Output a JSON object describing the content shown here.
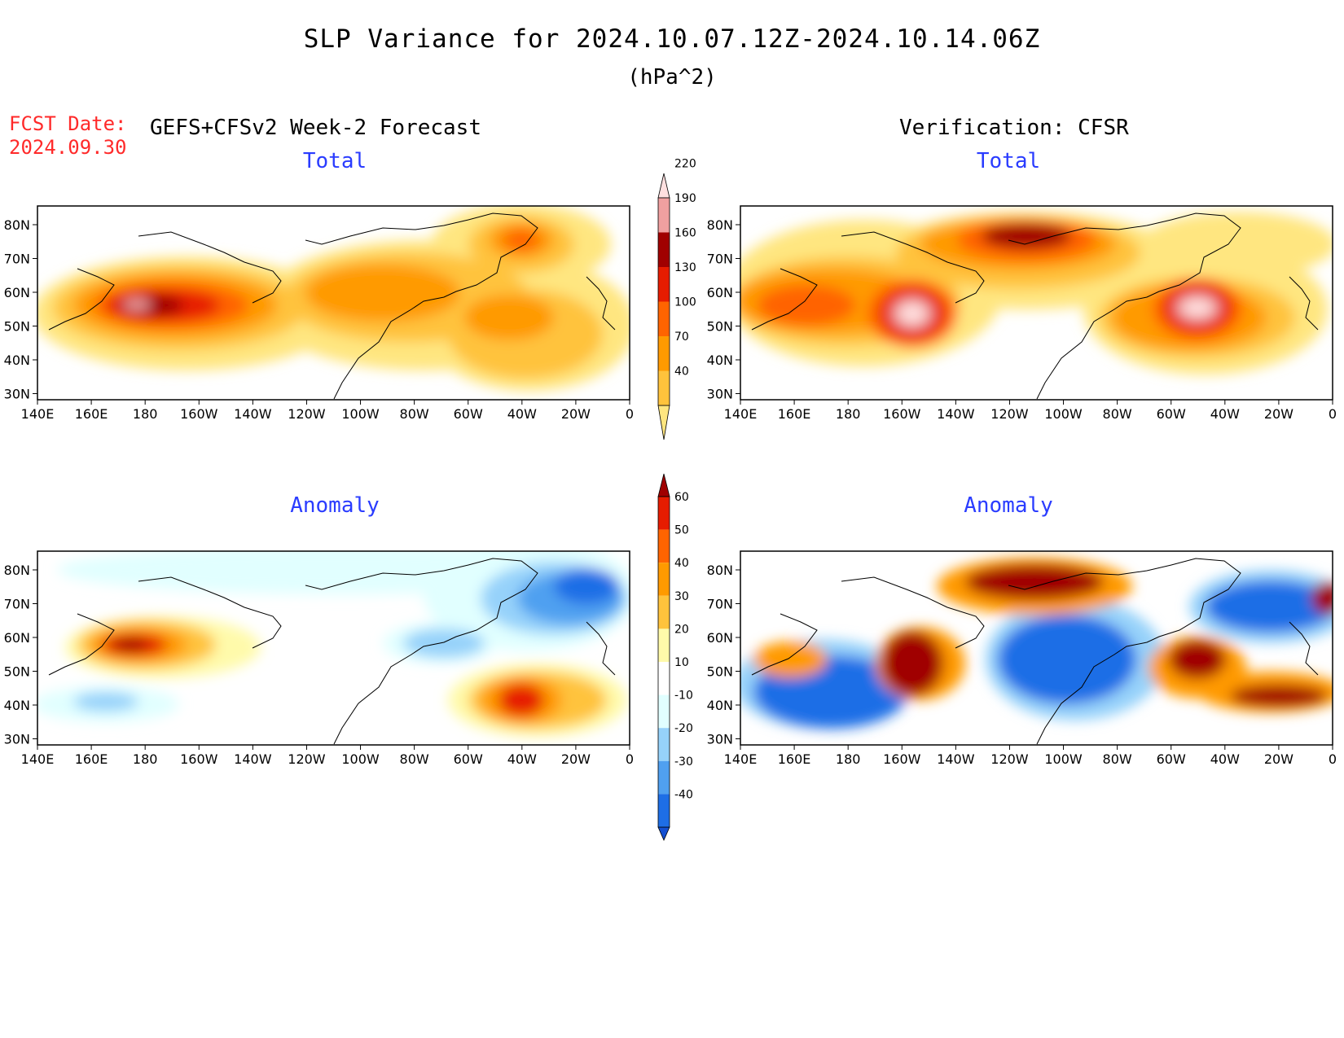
{
  "header": {
    "title": "SLP Variance for 2024.10.07.12Z-2024.10.14.06Z",
    "units": "(hPa^2)",
    "fcst_label": "FCST Date:",
    "fcst_date": "2024.09.30",
    "forecast_model": "GEFS+CFSv2 Week-2 Forecast",
    "verification": "Verification: CFSR"
  },
  "panels": [
    {
      "id": "fcst-total",
      "title": "Total"
    },
    {
      "id": "verif-total",
      "title": "Total"
    },
    {
      "id": "fcst-anomaly",
      "title": "Anomaly"
    },
    {
      "id": "verif-anomaly",
      "title": "Anomaly"
    }
  ],
  "axes": {
    "lon_ticks": [
      "140E",
      "160E",
      "180",
      "160W",
      "140W",
      "120W",
      "100W",
      "80W",
      "60W",
      "40W",
      "20W",
      "0"
    ],
    "lat_ticks": [
      "80N",
      "70N",
      "60N",
      "50N",
      "40N",
      "30N"
    ]
  },
  "colorbars": {
    "total": {
      "labels": [
        "40",
        "70",
        "100",
        "130",
        "160",
        "190",
        "220"
      ],
      "colors": [
        "#ffe680",
        "#ffc33c",
        "#ff9a00",
        "#ff6400",
        "#e61c00",
        "#a00000",
        "#f0a0a0",
        "#ffe0e0"
      ]
    },
    "anomaly": {
      "labels": [
        "-40",
        "-30",
        "-20",
        "-10",
        "10",
        "20",
        "30",
        "40",
        "50",
        "60"
      ],
      "colors": [
        "#1450d2",
        "#1e6ee6",
        "#50a0f0",
        "#96d2fa",
        "#e1ffff",
        "#ffffff",
        "#fffaaa",
        "#ffc33c",
        "#ff9a00",
        "#ff6400",
        "#e61c00",
        "#a00000"
      ]
    }
  }
}
